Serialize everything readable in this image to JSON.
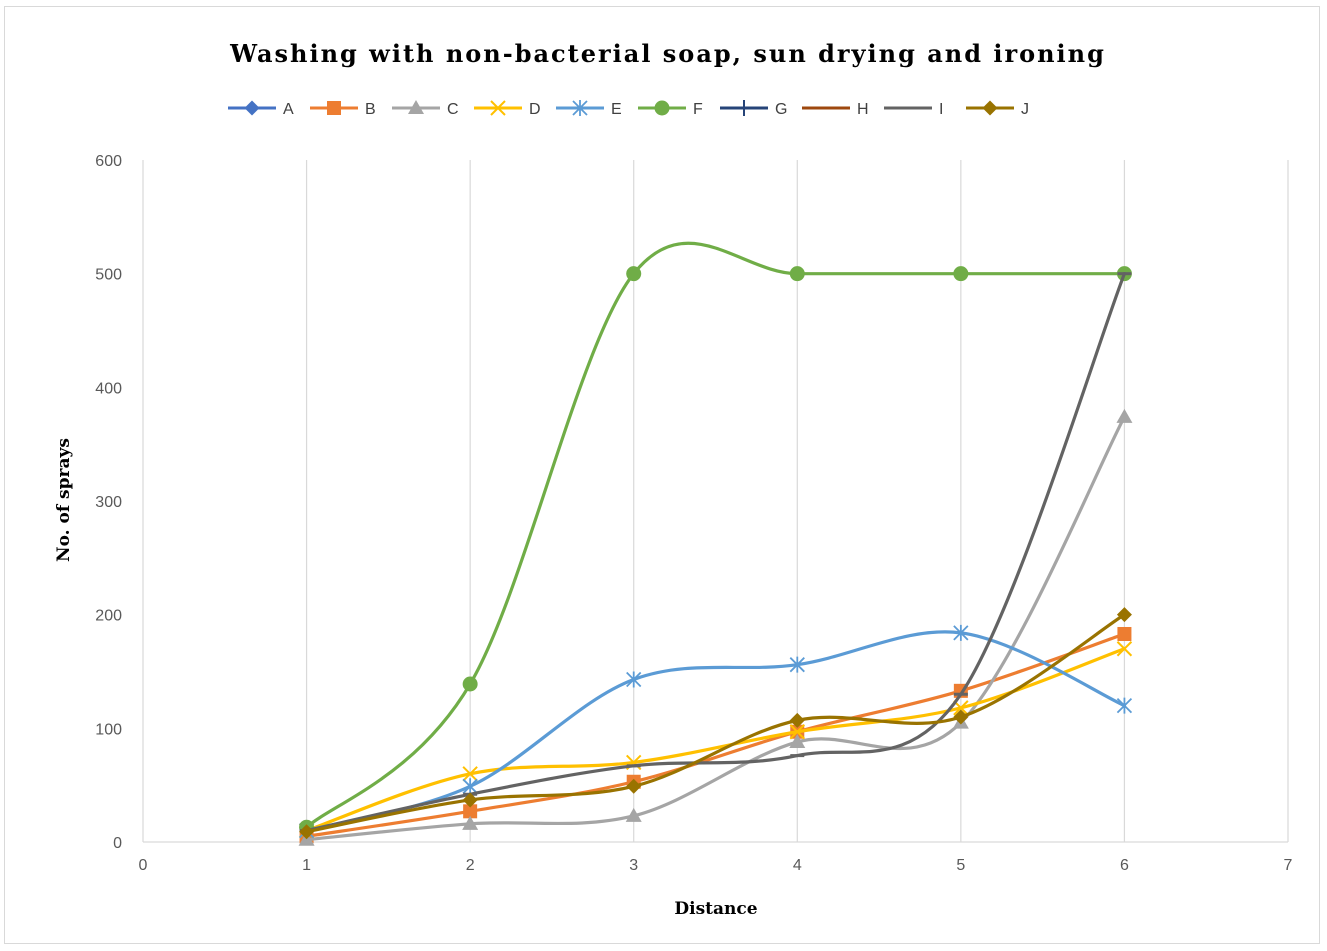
{
  "chart_data": {
    "type": "line",
    "title": "Washing with non-bacterial soap, sun drying and ironing",
    "xlabel": "Distance",
    "ylabel": "No. of sprays",
    "xlim": [
      0,
      7
    ],
    "ylim": [
      0,
      600
    ],
    "x_ticks": [
      0,
      1,
      2,
      3,
      4,
      5,
      6,
      7
    ],
    "y_ticks": [
      0,
      100,
      200,
      300,
      400,
      500,
      600
    ],
    "grid": "vertical",
    "legend_position": "top",
    "smooth": true,
    "x": [
      1,
      2,
      3,
      4,
      5,
      6
    ],
    "series": [
      {
        "name": "A",
        "color": "#4472c4",
        "marker": "diamond",
        "values": [
          null,
          null,
          null,
          null,
          null,
          null
        ]
      },
      {
        "name": "B",
        "color": "#ed7d31",
        "marker": "square",
        "values": [
          5,
          27,
          53,
          97,
          133,
          183
        ]
      },
      {
        "name": "C",
        "color": "#a5a5a5",
        "marker": "triangle",
        "values": [
          2,
          16,
          23,
          88,
          105,
          374
        ]
      },
      {
        "name": "D",
        "color": "#ffc000",
        "marker": "x",
        "values": [
          10,
          60,
          70,
          97,
          118,
          170
        ]
      },
      {
        "name": "E",
        "color": "#5b9bd5",
        "marker": "star",
        "values": [
          10,
          49,
          143,
          156,
          184,
          120
        ]
      },
      {
        "name": "F",
        "color": "#70ad47",
        "marker": "circle",
        "values": [
          13,
          139,
          500,
          500,
          500,
          500
        ]
      },
      {
        "name": "G",
        "color": "#264478",
        "marker": "plus",
        "values": [
          null,
          null,
          null,
          null,
          null,
          null
        ]
      },
      {
        "name": "H",
        "color": "#9e480e",
        "marker": "dash",
        "values": [
          null,
          null,
          null,
          null,
          null,
          null
        ]
      },
      {
        "name": "I",
        "color": "#636363",
        "marker": "dash",
        "values": [
          10,
          42,
          67,
          76,
          130,
          500
        ]
      },
      {
        "name": "J",
        "color": "#997300",
        "marker": "diamond",
        "values": [
          9,
          37,
          49,
          107,
          110,
          200
        ]
      }
    ]
  }
}
